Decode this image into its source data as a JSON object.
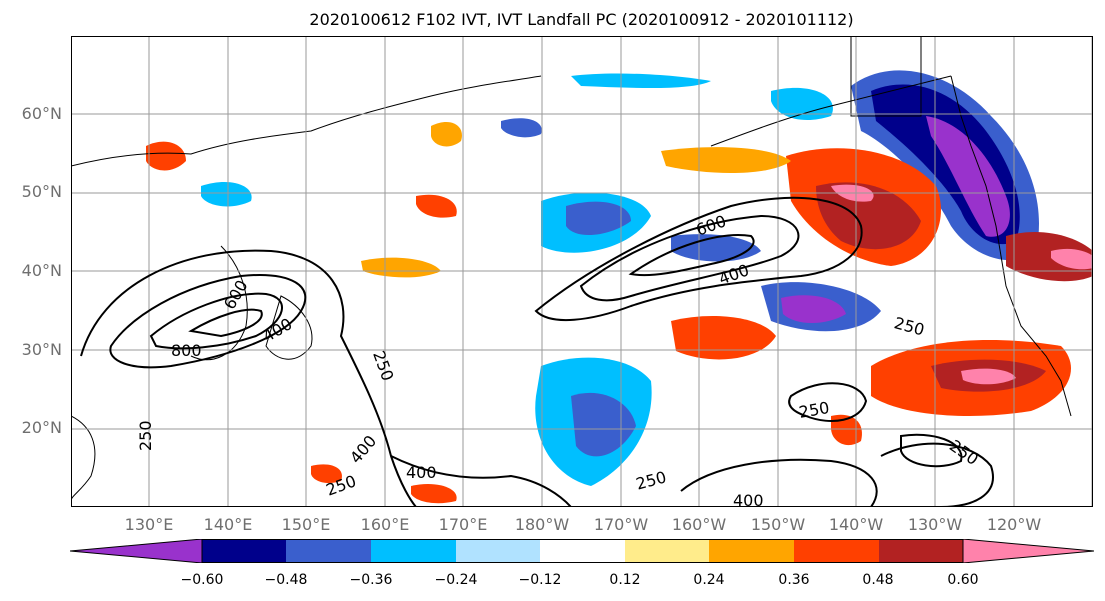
{
  "title": "2020100612 F102 IVT, IVT Landfall PC (2020100912 - 2020101112)",
  "latitude_labels": [
    "60°N",
    "50°N",
    "40°N",
    "30°N",
    "20°N"
  ],
  "longitude_labels": [
    "130°E",
    "140°E",
    "150°E",
    "160°E",
    "170°E",
    "180°W",
    "170°W",
    "160°W",
    "150°W",
    "140°W",
    "130°W",
    "120°W"
  ],
  "contour_labels": [
    "800",
    "600",
    "400",
    "250",
    "250",
    "400",
    "250",
    "400",
    "600",
    "400",
    "250",
    "250",
    "250",
    "250",
    "400"
  ],
  "colorbar": {
    "colors": [
      "#9932cc",
      "#00008b",
      "#3a5fcd",
      "#00bfff",
      "#b0e2ff",
      "#ffffff",
      "#ffec8b",
      "#ffa500",
      "#ff4000",
      "#b22222",
      "#ff82ab"
    ],
    "labels": [
      "−0.60",
      "−0.48",
      "−0.36",
      "−0.24",
      "−0.12",
      "0.12",
      "0.24",
      "0.36",
      "0.48",
      "0.60"
    ]
  }
}
